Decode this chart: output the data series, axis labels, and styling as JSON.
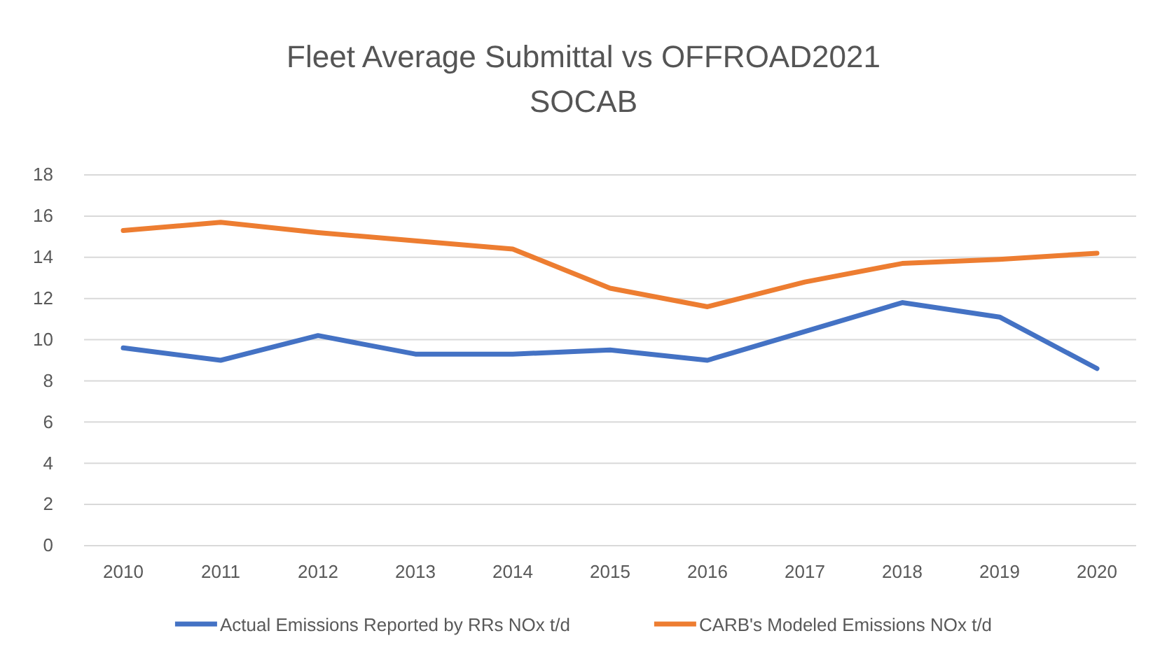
{
  "chart_data": {
    "type": "line",
    "title": "Fleet Average Submittal vs OFFROAD2021",
    "subtitle": "SOCAB",
    "categories": [
      "2010",
      "2011",
      "2012",
      "2013",
      "2014",
      "2015",
      "2016",
      "2017",
      "2018",
      "2019",
      "2020"
    ],
    "series": [
      {
        "name": "Actual Emissions Reported by RRs NOx t/d",
        "color": "#4472c4",
        "values": [
          9.6,
          9.0,
          10.2,
          9.3,
          9.3,
          9.5,
          9.0,
          10.4,
          11.8,
          11.1,
          8.6
        ]
      },
      {
        "name": "CARB's Modeled Emissions NOx t/d",
        "color": "#ed7d31",
        "values": [
          15.3,
          15.7,
          15.2,
          14.8,
          14.4,
          12.5,
          11.6,
          12.8,
          13.7,
          13.9,
          14.2
        ]
      }
    ],
    "ylim": [
      0,
      18
    ],
    "yticks": [
      0,
      2,
      4,
      6,
      8,
      10,
      12,
      14,
      16,
      18
    ],
    "grid": "y",
    "legend": "bottom",
    "marker": "none",
    "line_style": "solid"
  }
}
